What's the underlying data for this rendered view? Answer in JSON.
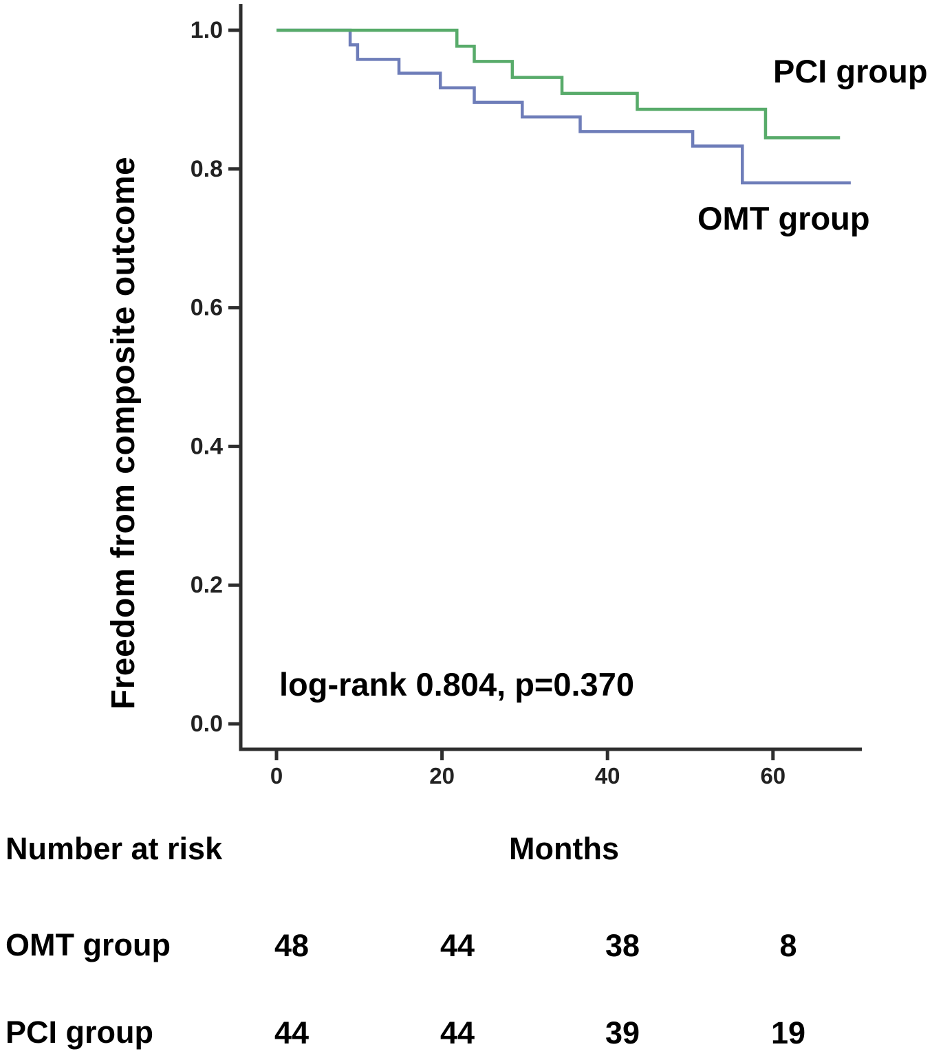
{
  "chart_data": {
    "type": "line",
    "subtype": "kaplan-meier-step",
    "title": "",
    "xlabel": "Months",
    "ylabel": "Freedom from composite outcome",
    "xlim": [
      0,
      70.6
    ],
    "ylim": [
      0.0,
      1.05
    ],
    "grid": false,
    "legend_position": "inline-annotations",
    "annotation": "log-rank 0.804, p=0.370",
    "x_ticks": [
      {
        "label": "0",
        "value": 0
      },
      {
        "label": "20",
        "value": 20
      },
      {
        "label": "40",
        "value": 40
      },
      {
        "label": "60",
        "value": 60
      }
    ],
    "y_ticks": [
      {
        "label": "1.0",
        "value": 1.0
      },
      {
        "label": "0.8",
        "value": 0.8
      },
      {
        "label": "0.6",
        "value": 0.6
      },
      {
        "label": "0.4",
        "value": 0.4
      },
      {
        "label": "0.2",
        "value": 0.2
      },
      {
        "label": "0.0",
        "value": 0.0
      }
    ],
    "series": [
      {
        "name": "OMT group",
        "color": "#6e7db9",
        "steps": [
          {
            "t": 0,
            "s": 1.0
          },
          {
            "t": 8.9,
            "s": 0.979
          },
          {
            "t": 9.8,
            "s": 0.958
          },
          {
            "t": 14.8,
            "s": 0.938
          },
          {
            "t": 19.8,
            "s": 0.917
          },
          {
            "t": 23.9,
            "s": 0.896
          },
          {
            "t": 29.7,
            "s": 0.875
          },
          {
            "t": 36.7,
            "s": 0.854
          },
          {
            "t": 50.3,
            "s": 0.833
          },
          {
            "t": 56.3,
            "s": 0.78
          }
        ],
        "end_t": 69.4
      },
      {
        "name": "PCI group",
        "color": "#58ab6a",
        "steps": [
          {
            "t": 0,
            "s": 1.0
          },
          {
            "t": 21.8,
            "s": 0.977
          },
          {
            "t": 23.9,
            "s": 0.955
          },
          {
            "t": 28.5,
            "s": 0.932
          },
          {
            "t": 34.5,
            "s": 0.909
          },
          {
            "t": 43.6,
            "s": 0.886
          },
          {
            "t": 59.1,
            "s": 0.845
          }
        ],
        "end_t": 68.1
      }
    ]
  },
  "risk_table": {
    "title": "Number at risk",
    "columns": [
      "0",
      "20",
      "40",
      "60"
    ],
    "rows": [
      {
        "label": "OMT group",
        "values": [
          "48",
          "44",
          "38",
          "8"
        ]
      },
      {
        "label": "PCI group",
        "values": [
          "44",
          "44",
          "39",
          "19"
        ]
      }
    ]
  },
  "colors": {
    "axis": "#2e2e2e",
    "tick_text": "#222222",
    "text": "#000000",
    "pci_curve": "#58ab6a",
    "omt_curve": "#6e7db9"
  }
}
